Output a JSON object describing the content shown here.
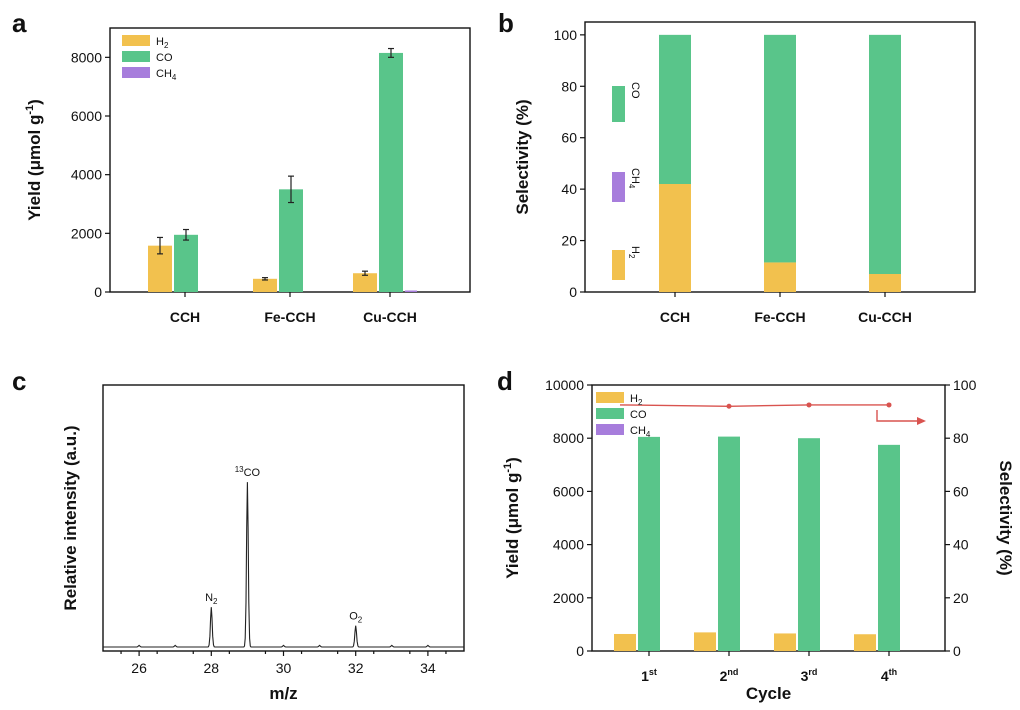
{
  "colors": {
    "H2": "#f2c14e",
    "CO": "#59c58a",
    "CH4": "#a77ddc",
    "line": "#d9534f",
    "spectrum": "#222222"
  },
  "legend": {
    "H2": [
      "H",
      "2"
    ],
    "CO": [
      "CO",
      ""
    ],
    "CH4": [
      "CH",
      "4"
    ]
  },
  "chart_data": [
    {
      "panel": "a",
      "type": "bar",
      "ylabel": "Yield (μmol g⁻¹)",
      "ylim": [
        0,
        9000
      ],
      "yticks": [
        0,
        2000,
        4000,
        6000,
        8000
      ],
      "categories": [
        "CCH",
        "Fe-CCH",
        "Cu-CCH"
      ],
      "series": [
        {
          "name": "H2",
          "values": [
            1580,
            450,
            640
          ],
          "errors": [
            280,
            40,
            70
          ]
        },
        {
          "name": "CO",
          "values": [
            1950,
            3500,
            8150
          ],
          "errors": [
            180,
            450,
            150
          ]
        },
        {
          "name": "CH4",
          "values": [
            0,
            0,
            20
          ],
          "errors": [
            0,
            0,
            0
          ]
        }
      ]
    },
    {
      "panel": "b",
      "type": "bar",
      "stacked": true,
      "ylabel": "Selectivity (%)",
      "ylim": [
        0,
        100
      ],
      "yticks": [
        0,
        20,
        40,
        60,
        80,
        100
      ],
      "categories": [
        "CCH",
        "Fe-CCH",
        "Cu-CCH"
      ],
      "series": [
        {
          "name": "H2",
          "values": [
            42,
            11.5,
            7
          ]
        },
        {
          "name": "CH4",
          "values": [
            0,
            0,
            0
          ]
        },
        {
          "name": "CO",
          "values": [
            58,
            88.5,
            93
          ]
        }
      ],
      "legend_labels": {
        "CO": "CO",
        "CH4": "CH4",
        "H2": "H2"
      }
    },
    {
      "panel": "c",
      "type": "line",
      "xlabel": "m/z",
      "ylabel": "Relative intensity (a.u.)",
      "xlim": [
        25,
        35
      ],
      "xticks": [
        26,
        28,
        30,
        32,
        34
      ],
      "ylim": [
        0,
        100
      ],
      "peaks": [
        {
          "x": 28,
          "y": 15,
          "label": [
            "N",
            "2",
            ""
          ]
        },
        {
          "x": 29,
          "y": 62,
          "label": [
            "",
            "13",
            "CO"
          ]
        },
        {
          "x": 32,
          "y": 8,
          "label": [
            "O",
            "2",
            ""
          ]
        }
      ],
      "baseline": 1.5
    },
    {
      "panel": "d",
      "type": "bar",
      "xlabel": "Cycle",
      "ylabel": "Yield (μmol g⁻¹)",
      "ylabel_right": "Selectivity (%)",
      "ylim": [
        0,
        10000
      ],
      "yticks": [
        0,
        2000,
        4000,
        6000,
        8000,
        10000
      ],
      "ylim_right": [
        0,
        100
      ],
      "yticks_right": [
        0,
        20,
        40,
        60,
        80,
        100
      ],
      "categories": [
        [
          "1",
          "st"
        ],
        [
          "2",
          "nd"
        ],
        [
          "3",
          "rd"
        ],
        [
          "4",
          "th"
        ]
      ],
      "series": [
        {
          "name": "H2",
          "values": [
            640,
            700,
            660,
            630
          ]
        },
        {
          "name": "CO",
          "values": [
            8050,
            8060,
            8000,
            7750
          ]
        },
        {
          "name": "CH4",
          "values": [
            0,
            0,
            0,
            0
          ]
        }
      ],
      "selectivity_CO": [
        92.5,
        92,
        92.5,
        92.5
      ]
    }
  ]
}
